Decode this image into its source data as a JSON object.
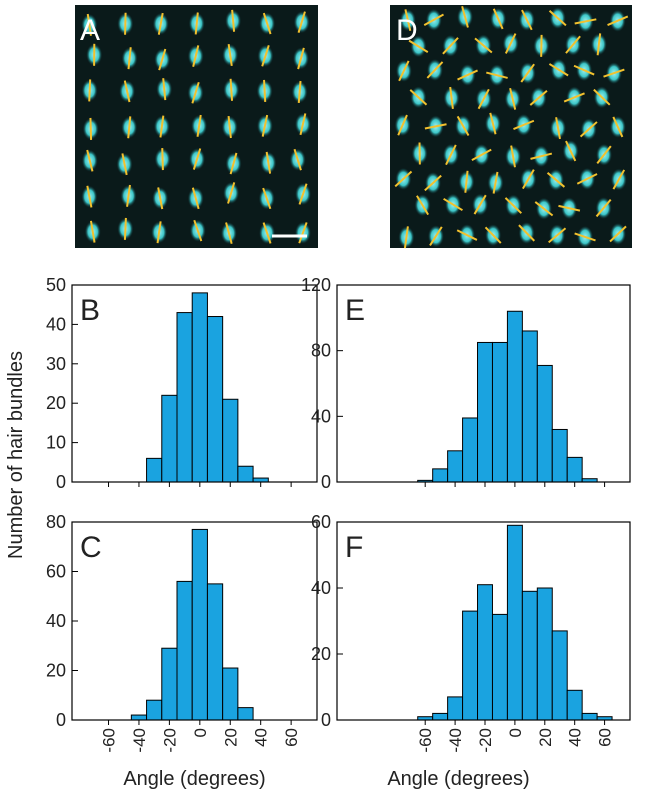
{
  "images": [
    {
      "label": "A"
    },
    {
      "label": "D"
    }
  ],
  "y_label": "Number of hair bundles",
  "chart_data": [
    {
      "type": "histogram",
      "label": "B",
      "color": "#1aa3e0",
      "bins": [
        -35,
        -25,
        -15,
        -5,
        5,
        15,
        25,
        35,
        45
      ],
      "values": [
        6,
        22,
        43,
        48,
        42,
        21,
        4,
        1
      ],
      "xlim": [
        -84,
        77
      ],
      "xticks": [
        -60,
        -40,
        -20,
        0,
        20,
        40,
        60
      ],
      "show_xtick_labels": false,
      "ylim": [
        0,
        50
      ],
      "yticks": [
        0,
        10,
        20,
        30,
        40,
        50
      ]
    },
    {
      "type": "histogram",
      "label": "C",
      "color": "#1aa3e0",
      "bins": [
        -45,
        -35,
        -25,
        -15,
        -5,
        5,
        15,
        25,
        35
      ],
      "values": [
        2,
        8,
        29,
        56,
        77,
        55,
        21,
        5
      ],
      "xlim": [
        -84,
        77
      ],
      "xticks": [
        -60,
        -40,
        -20,
        0,
        20,
        40,
        60
      ],
      "show_xtick_labels": true,
      "ylim": [
        0,
        80
      ],
      "yticks": [
        0,
        20,
        40,
        60,
        80
      ],
      "x_label": "Angle (degrees)"
    },
    {
      "type": "histogram",
      "label": "E",
      "color": "#1aa3e0",
      "bins": [
        -65,
        -55,
        -45,
        -35,
        -25,
        -15,
        -5,
        5,
        15,
        25,
        35,
        45,
        55
      ],
      "values": [
        1,
        8,
        19,
        39,
        85,
        85,
        104,
        92,
        71,
        32,
        15,
        2
      ],
      "xlim": [
        -119,
        77
      ],
      "xticks": [
        -60,
        -40,
        -20,
        0,
        20,
        40,
        60
      ],
      "show_xtick_labels": false,
      "ylim": [
        0,
        120
      ],
      "yticks": [
        0,
        40,
        80,
        120
      ]
    },
    {
      "type": "histogram",
      "label": "F",
      "color": "#1aa3e0",
      "bins": [
        -65,
        -55,
        -45,
        -35,
        -25,
        -15,
        -5,
        5,
        15,
        25,
        35,
        45,
        55,
        65
      ],
      "values": [
        1,
        2,
        7,
        33,
        41,
        32,
        59,
        39,
        40,
        27,
        9,
        2,
        1
      ],
      "xlim": [
        -119,
        77
      ],
      "xticks": [
        -60,
        -40,
        -20,
        0,
        20,
        40,
        60
      ],
      "show_xtick_labels": true,
      "ylim": [
        0,
        60
      ],
      "yticks": [
        0,
        20,
        40,
        60
      ],
      "x_label": "Angle (degrees)"
    }
  ]
}
